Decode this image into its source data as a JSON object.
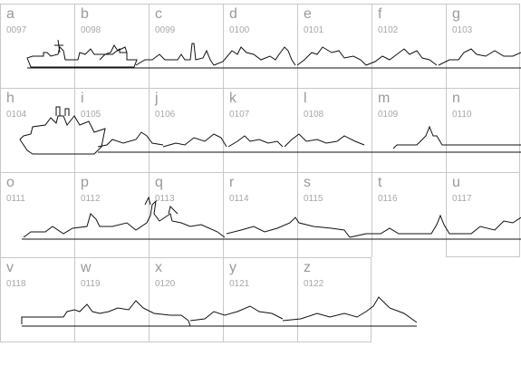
{
  "glyph_map": {
    "cells": [
      {
        "letter": "a",
        "code": "0097"
      },
      {
        "letter": "b",
        "code": "0098"
      },
      {
        "letter": "c",
        "code": "0099"
      },
      {
        "letter": "d",
        "code": "0100"
      },
      {
        "letter": "e",
        "code": "0101"
      },
      {
        "letter": "f",
        "code": "0102"
      },
      {
        "letter": "g",
        "code": "0103"
      },
      {
        "letter": "h",
        "code": "0104"
      },
      {
        "letter": "i",
        "code": "0105"
      },
      {
        "letter": "j",
        "code": "0106"
      },
      {
        "letter": "k",
        "code": "0107"
      },
      {
        "letter": "l",
        "code": "0108"
      },
      {
        "letter": "m",
        "code": "0109"
      },
      {
        "letter": "n",
        "code": "0110"
      },
      {
        "letter": "o",
        "code": "0111"
      },
      {
        "letter": "p",
        "code": "0112"
      },
      {
        "letter": "q",
        "code": "0113"
      },
      {
        "letter": "r",
        "code": "0114"
      },
      {
        "letter": "s",
        "code": "0115"
      },
      {
        "letter": "t",
        "code": "0116"
      },
      {
        "letter": "u",
        "code": "0117"
      },
      {
        "letter": "v",
        "code": "0118"
      },
      {
        "letter": "w",
        "code": "0119"
      },
      {
        "letter": "x",
        "code": "0120"
      },
      {
        "letter": "y",
        "code": "0121"
      },
      {
        "letter": "z",
        "code": "0122"
      }
    ],
    "colors": {
      "grid_line": "#c8c8c8",
      "label": "#9a9a9a",
      "glyph": "#111111",
      "background": "#ffffff"
    }
  }
}
